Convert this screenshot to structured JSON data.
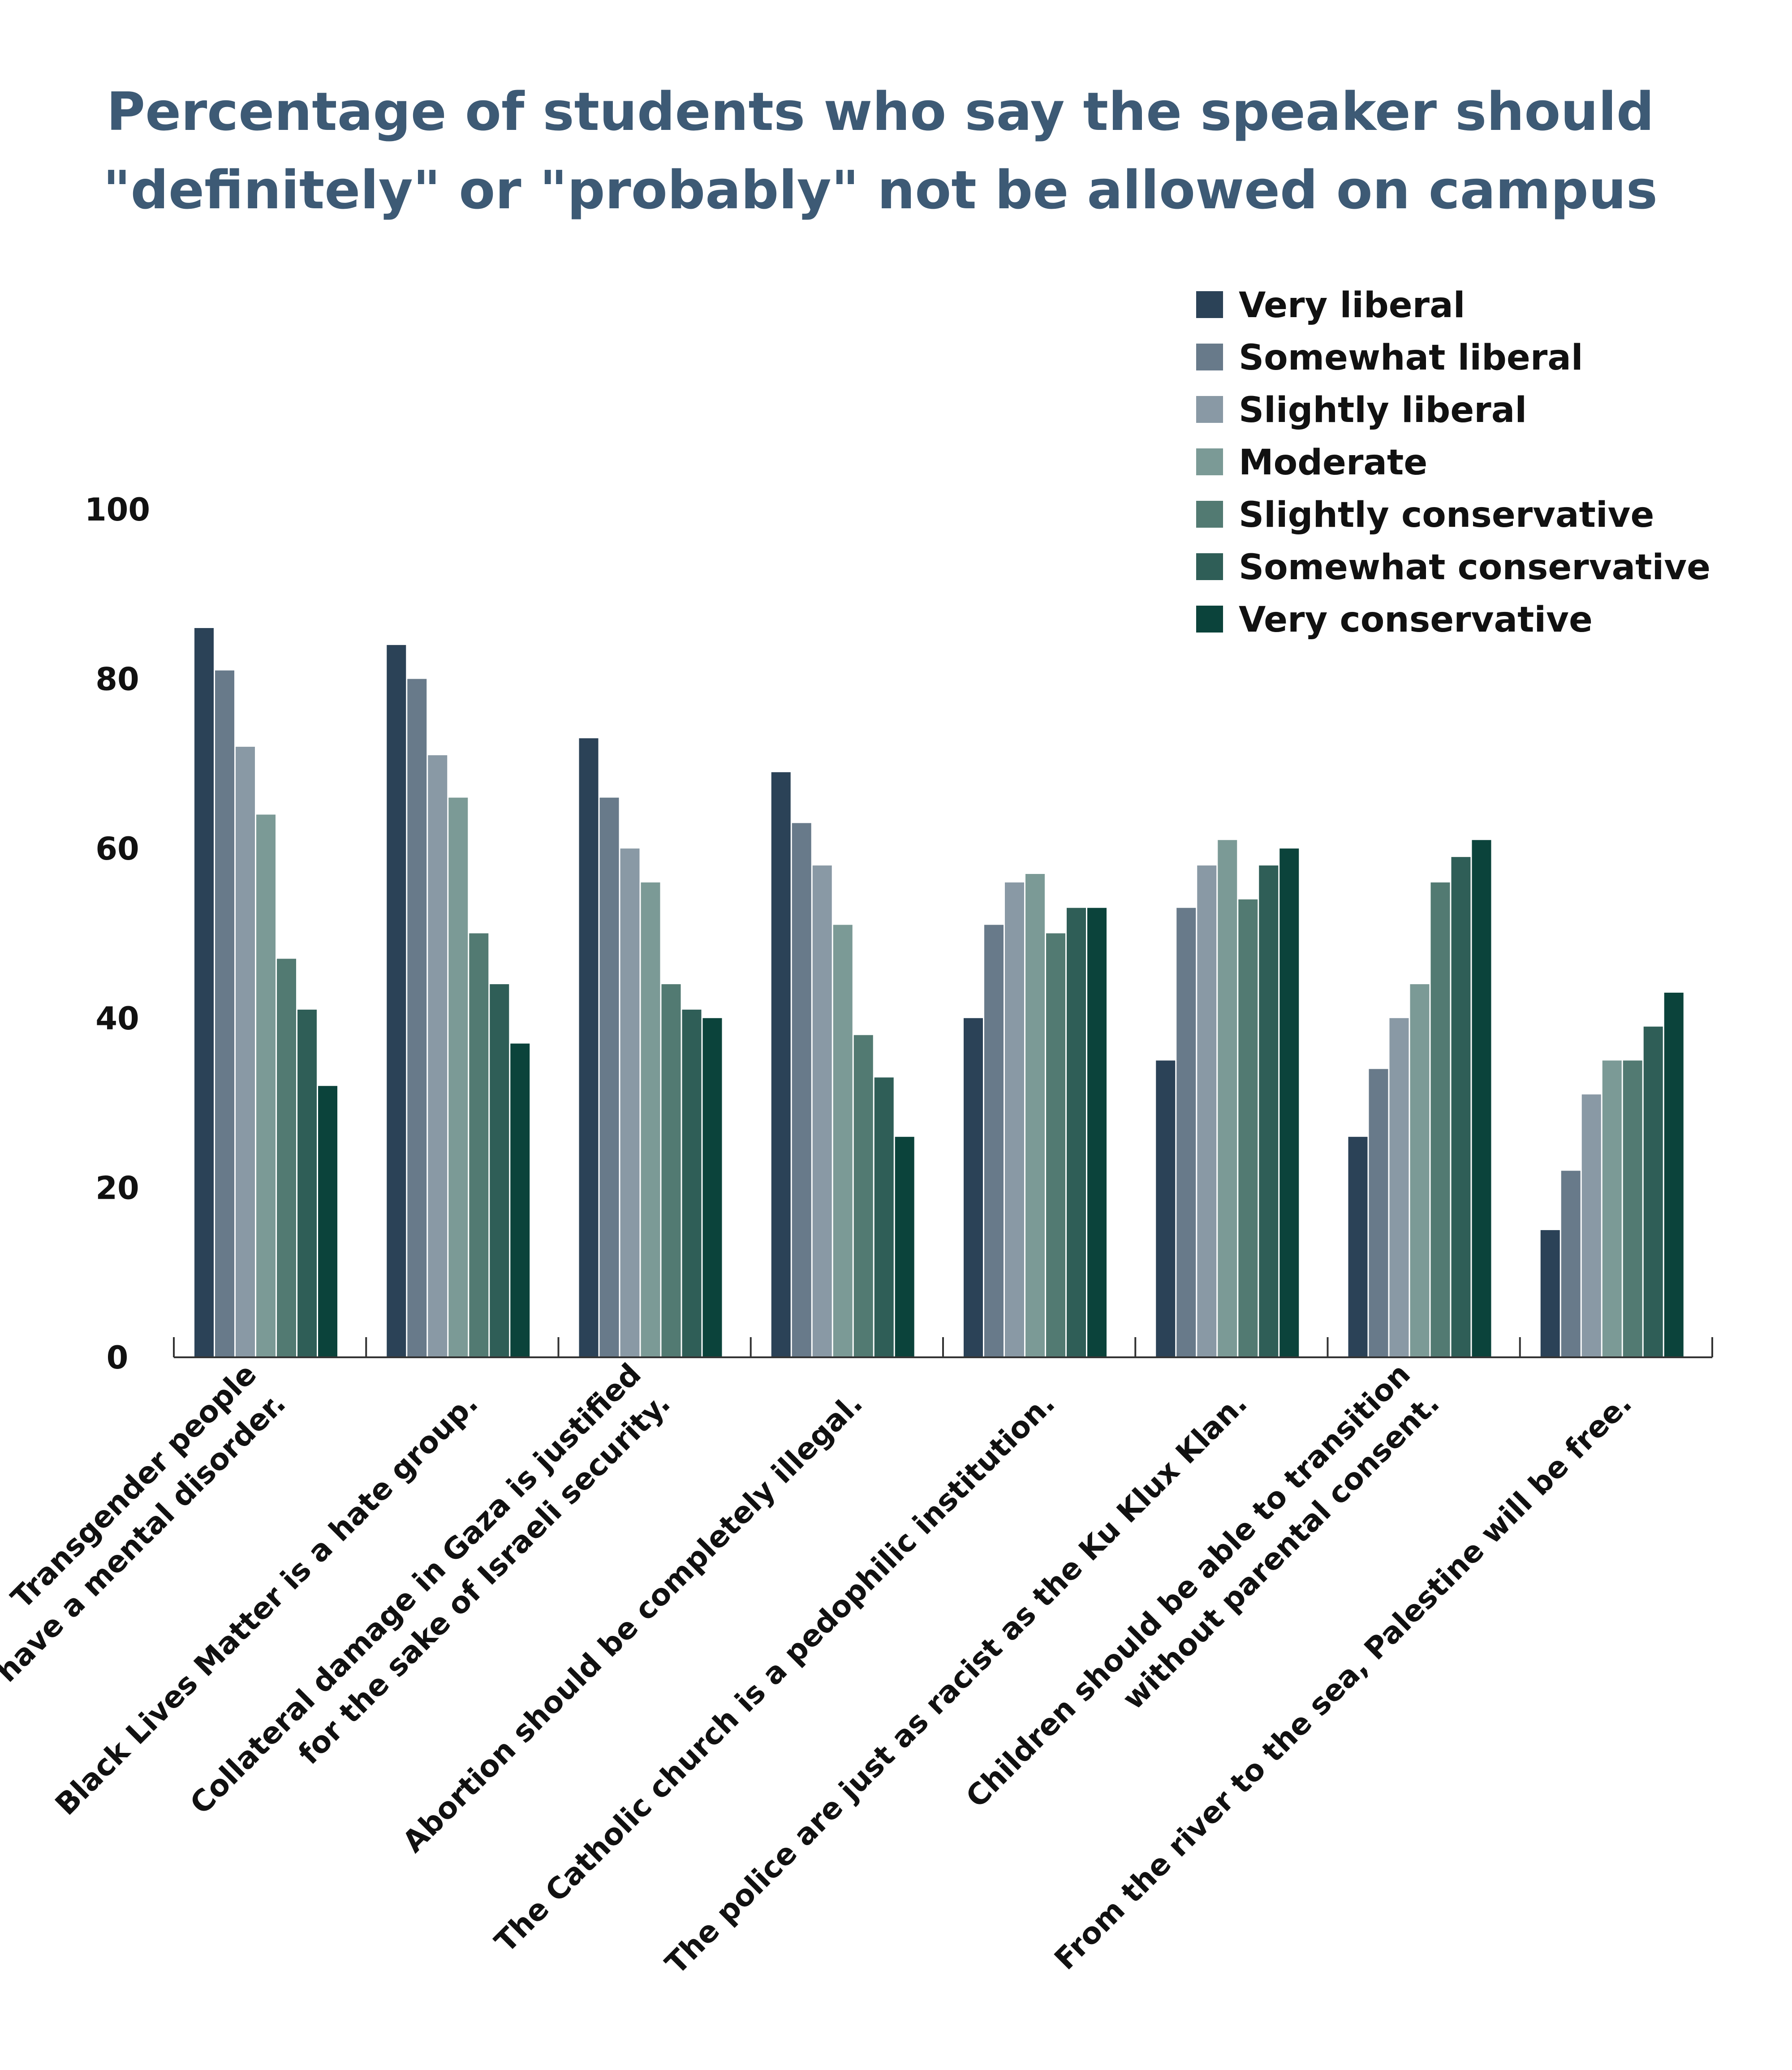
{
  "chart_data": {
    "type": "bar",
    "title": [
      "Percentage of students who say the speaker should",
      "\"definitely\" or \"probably\" not be allowed on campus"
    ],
    "xlabel": "",
    "ylabel": "",
    "ylim": [
      0,
      100
    ],
    "yticks": [
      0,
      20,
      40,
      60,
      80,
      100
    ],
    "legend_position": "top-right",
    "grid": false,
    "categories": [
      [
        "Transgender people",
        "have a mental disorder."
      ],
      [
        "Black Lives Matter is a hate group."
      ],
      [
        "Collateral damage in Gaza is justified",
        "for the sake of Israeli security."
      ],
      [
        "Abortion should be completely illegal."
      ],
      [
        "The Catholic church is a pedophilic institution."
      ],
      [
        "The police are just as racist as the Ku Klux Klan."
      ],
      [
        "Children should be able to transition",
        "without parental consent."
      ],
      [
        "From the river to the sea, Palestine will be free."
      ]
    ],
    "series": [
      {
        "name": "Very liberal",
        "color": "#2b4257",
        "values": [
          86,
          84,
          73,
          69,
          40,
          35,
          26,
          15
        ]
      },
      {
        "name": "Somewhat liberal",
        "color": "#687a8a",
        "values": [
          81,
          80,
          66,
          63,
          51,
          53,
          34,
          22
        ]
      },
      {
        "name": "Slightly liberal",
        "color": "#8999a5",
        "values": [
          72,
          71,
          60,
          58,
          56,
          58,
          40,
          31
        ]
      },
      {
        "name": "Moderate",
        "color": "#7b9a96",
        "values": [
          64,
          66,
          56,
          51,
          57,
          61,
          44,
          35
        ]
      },
      {
        "name": "Slightly conservative",
        "color": "#527a72",
        "values": [
          47,
          50,
          44,
          38,
          50,
          54,
          56,
          35
        ]
      },
      {
        "name": "Somewhat conservative",
        "color": "#2f5e57",
        "values": [
          41,
          44,
          41,
          33,
          53,
          58,
          59,
          39
        ]
      },
      {
        "name": "Very conservative",
        "color": "#0b433b",
        "values": [
          32,
          37,
          40,
          26,
          53,
          60,
          61,
          43
        ]
      }
    ]
  }
}
